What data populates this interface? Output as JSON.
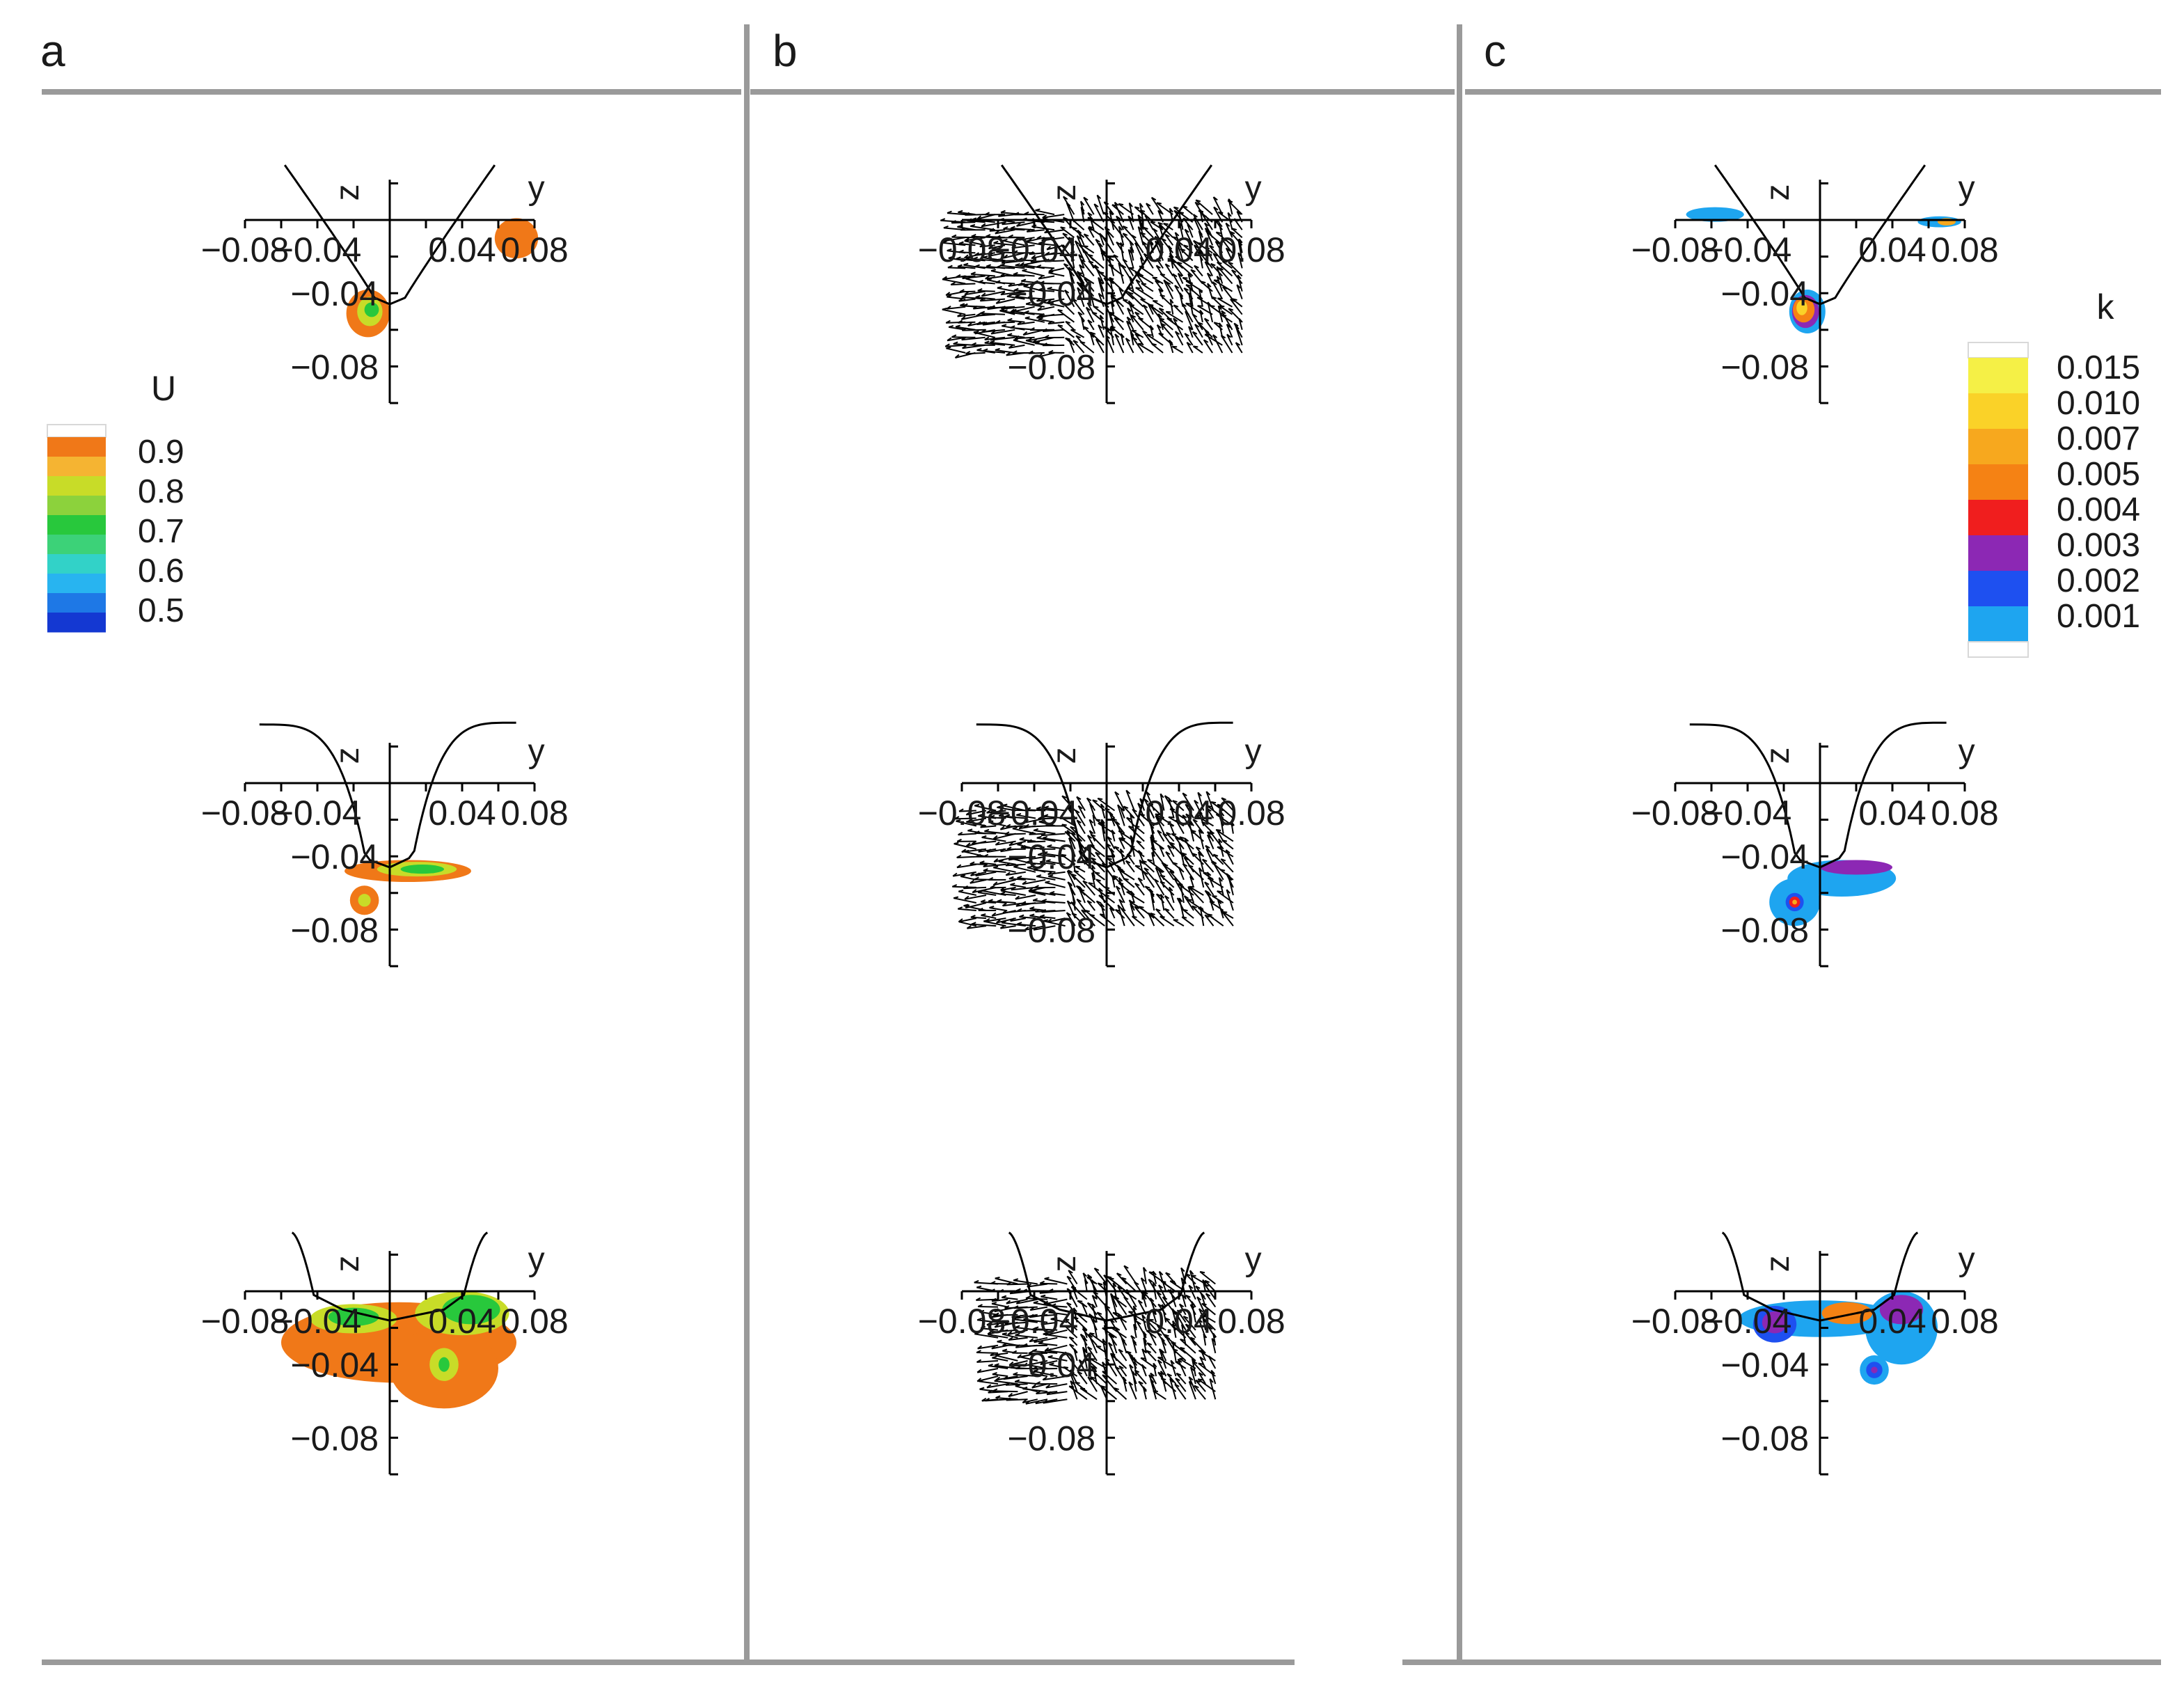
{
  "figure": {
    "panel_labels": [
      "a",
      "b",
      "c"
    ],
    "colors": {
      "separator": "#9a9a9a",
      "axis": "#000000",
      "hull": "#000000",
      "vector": "#000000"
    }
  },
  "chart_data": [
    {
      "id": "a1",
      "panel": "a",
      "row": 1,
      "type": "contour",
      "variable": "U",
      "xlabel": "y",
      "ylabel": "z",
      "xticks": [
        "−0.08",
        "−0.04",
        "0.04",
        "0.08"
      ],
      "xtick_values": [
        -0.08,
        -0.04,
        0.04,
        0.08
      ],
      "yticks": [
        "−0.04",
        "−0.08"
      ],
      "ytick_values": [
        -0.04,
        -0.08
      ],
      "xlim": [
        -0.08,
        0.08
      ],
      "ylim": [
        -0.1,
        0.02
      ],
      "hull": "v",
      "colorbar": {
        "title": "U",
        "labels": [
          "0.9",
          "0.8",
          "0.7",
          "0.6",
          "0.5"
        ],
        "label_values": [
          0.9,
          0.8,
          0.7,
          0.6,
          0.5
        ],
        "levels": [
          0.95,
          0.9,
          0.85,
          0.8,
          0.75,
          0.7,
          0.65,
          0.6,
          0.55,
          0.5
        ],
        "colors": [
          "#f07818",
          "#f5b432",
          "#c8dc28",
          "#8cd23c",
          "#28c83c",
          "#3cd278",
          "#32d2c8",
          "#28b4f0",
          "#1e78e6",
          "#1438d2"
        ]
      },
      "regions": [
        {
          "cx": 0.07,
          "cy": -0.01,
          "rx": 0.012,
          "ry": 0.011,
          "level": 0.9,
          "color": "#f07818"
        },
        {
          "cx": -0.012,
          "cy": -0.051,
          "rx": 0.012,
          "ry": 0.013,
          "level": 0.9,
          "color": "#f07818"
        },
        {
          "cx": -0.011,
          "cy": -0.05,
          "rx": 0.007,
          "ry": 0.008,
          "level": 0.85,
          "color": "#c8dc28"
        },
        {
          "cx": -0.01,
          "cy": -0.049,
          "rx": 0.004,
          "ry": 0.004,
          "level": 0.75,
          "color": "#28c83c"
        }
      ]
    },
    {
      "id": "a2",
      "panel": "a",
      "row": 2,
      "type": "contour",
      "variable": "U",
      "xlabel": "y",
      "ylabel": "z",
      "xticks": [
        "−0.08",
        "−0.04",
        "0.04",
        "0.08"
      ],
      "xtick_values": [
        -0.08,
        -0.04,
        0.04,
        0.08
      ],
      "yticks": [
        "−0.04",
        "−0.08"
      ],
      "ytick_values": [
        -0.04,
        -0.08
      ],
      "xlim": [
        -0.08,
        0.08
      ],
      "ylim": [
        -0.1,
        0.02
      ],
      "hull": "u",
      "regions": [
        {
          "cx": 0.01,
          "cy": -0.048,
          "rx": 0.035,
          "ry": 0.006,
          "level": 0.9,
          "color": "#f07818"
        },
        {
          "cx": 0.015,
          "cy": -0.047,
          "rx": 0.022,
          "ry": 0.004,
          "level": 0.85,
          "color": "#c8dc28"
        },
        {
          "cx": 0.018,
          "cy": -0.047,
          "rx": 0.012,
          "ry": 0.0025,
          "level": 0.75,
          "color": "#28c83c"
        },
        {
          "cx": -0.014,
          "cy": -0.064,
          "rx": 0.008,
          "ry": 0.008,
          "level": 0.9,
          "color": "#f07818"
        },
        {
          "cx": -0.014,
          "cy": -0.064,
          "rx": 0.0035,
          "ry": 0.0035,
          "level": 0.85,
          "color": "#c8dc28"
        }
      ]
    },
    {
      "id": "a3",
      "panel": "a",
      "row": 3,
      "type": "contour",
      "variable": "U",
      "xlabel": "y",
      "ylabel": "z",
      "xticks": [
        "−0.08",
        "−0.04",
        "0.04",
        "0.08"
      ],
      "xtick_values": [
        -0.08,
        -0.04,
        0.04,
        0.08
      ],
      "yticks": [
        "−0.04",
        "−0.08"
      ],
      "ytick_values": [
        -0.04,
        -0.08
      ],
      "xlim": [
        -0.08,
        0.08
      ],
      "ylim": [
        -0.1,
        0.02
      ],
      "hull": "flat",
      "regions": [
        {
          "cx": 0.005,
          "cy": -0.028,
          "rx": 0.065,
          "ry": 0.022,
          "level": 0.9,
          "color": "#f07818"
        },
        {
          "cx": 0.03,
          "cy": -0.042,
          "rx": 0.03,
          "ry": 0.022,
          "level": 0.9,
          "color": "#f07818"
        },
        {
          "cx": -0.02,
          "cy": -0.015,
          "rx": 0.024,
          "ry": 0.008,
          "level": 0.85,
          "color": "#c8dc28"
        },
        {
          "cx": -0.02,
          "cy": -0.014,
          "rx": 0.014,
          "ry": 0.005,
          "level": 0.75,
          "color": "#28c83c"
        },
        {
          "cx": 0.04,
          "cy": -0.012,
          "rx": 0.026,
          "ry": 0.012,
          "level": 0.85,
          "color": "#c8dc28"
        },
        {
          "cx": 0.045,
          "cy": -0.01,
          "rx": 0.016,
          "ry": 0.008,
          "level": 0.75,
          "color": "#28c83c"
        },
        {
          "cx": 0.03,
          "cy": -0.04,
          "rx": 0.008,
          "ry": 0.009,
          "level": 0.85,
          "color": "#c8dc28"
        },
        {
          "cx": 0.03,
          "cy": -0.04,
          "rx": 0.003,
          "ry": 0.004,
          "level": 0.75,
          "color": "#28c83c"
        }
      ]
    },
    {
      "id": "b1",
      "panel": "b",
      "row": 1,
      "type": "vector",
      "variable": "velocity",
      "xlabel": "y",
      "ylabel": "z",
      "xticks": [
        "−0.08",
        "−0.04",
        "0.04",
        "0.08"
      ],
      "xtick_values": [
        -0.08,
        -0.04,
        0.04,
        0.08
      ],
      "yticks": [
        "−0.04",
        "−0.08"
      ],
      "ytick_values": [
        -0.04,
        -0.08
      ],
      "xlim": [
        -0.08,
        0.08
      ],
      "ylim": [
        -0.1,
        0.02
      ],
      "hull": "v",
      "vector_region": {
        "y": [
          -0.078,
          0.075
        ],
        "z": [
          -0.075,
          0.003
        ]
      }
    },
    {
      "id": "b2",
      "panel": "b",
      "row": 2,
      "type": "vector",
      "variable": "velocity",
      "xlabel": "y",
      "ylabel": "z",
      "xticks": [
        "−0.08",
        "−0.04",
        "0.04",
        "0.08"
      ],
      "xtick_values": [
        -0.08,
        -0.04,
        0.04,
        0.08
      ],
      "yticks": [
        "−0.04",
        "−0.08"
      ],
      "ytick_values": [
        -0.04,
        -0.08
      ],
      "xlim": [
        -0.08,
        0.08
      ],
      "ylim": [
        -0.1,
        0.02
      ],
      "hull": "u",
      "vector_region": {
        "y": [
          -0.072,
          0.07
        ],
        "z": [
          -0.082,
          -0.015
        ]
      }
    },
    {
      "id": "b3",
      "panel": "b",
      "row": 3,
      "type": "vector",
      "variable": "velocity",
      "xlabel": "y",
      "ylabel": "z",
      "xticks": [
        "−0.08",
        "−0.04",
        "0.04",
        "0.08"
      ],
      "xtick_values": [
        -0.08,
        -0.04,
        0.04,
        0.08
      ],
      "yticks": [
        "−0.04",
        "−0.08"
      ],
      "ytick_values": [
        -0.04,
        -0.08
      ],
      "xlim": [
        -0.08,
        0.08
      ],
      "ylim": [
        -0.1,
        0.02
      ],
      "hull": "flat",
      "vector_region": {
        "y": [
          -0.06,
          0.065
        ],
        "z": [
          -0.063,
          0.004
        ]
      }
    },
    {
      "id": "c1",
      "panel": "c",
      "row": 1,
      "type": "contour",
      "variable": "k",
      "xlabel": "y",
      "ylabel": "z",
      "xticks": [
        "−0.08",
        "−0.04",
        "0.04",
        "0.08"
      ],
      "xtick_values": [
        -0.08,
        -0.04,
        0.04,
        0.08
      ],
      "yticks": [
        "−0.04",
        "−0.08"
      ],
      "ytick_values": [
        -0.04,
        -0.08
      ],
      "xlim": [
        -0.08,
        0.08
      ],
      "ylim": [
        -0.1,
        0.02
      ],
      "hull": "v",
      "colorbar": {
        "title": "k",
        "labels": [
          "0.015",
          "0.010",
          "0.007",
          "0.005",
          "0.004",
          "0.003",
          "0.002",
          "0.001"
        ],
        "label_values": [
          0.015,
          0.01,
          0.007,
          0.005,
          0.004,
          0.003,
          0.002,
          0.001
        ],
        "colors": [
          "#f5f046",
          "#fad228",
          "#f7a81e",
          "#f58214",
          "#f01e1e",
          "#8c28b4",
          "#1e50f0",
          "#1ea5f0"
        ]
      },
      "regions": [
        {
          "cx": -0.058,
          "cy": 0.003,
          "rx": 0.016,
          "ry": 0.004,
          "level": 0.001,
          "color": "#1ea5f0"
        },
        {
          "cx": 0.066,
          "cy": -0.001,
          "rx": 0.012,
          "ry": 0.003,
          "level": 0.001,
          "color": "#1ea5f0"
        },
        {
          "cx": 0.07,
          "cy": -0.001,
          "rx": 0.005,
          "ry": 0.002,
          "level": 0.007,
          "color": "#f7a81e"
        },
        {
          "cx": -0.007,
          "cy": -0.05,
          "rx": 0.01,
          "ry": 0.012,
          "level": 0.001,
          "color": "#1ea5f0"
        },
        {
          "cx": -0.008,
          "cy": -0.05,
          "rx": 0.0075,
          "ry": 0.009,
          "level": 0.003,
          "color": "#8c28b4"
        },
        {
          "cx": -0.009,
          "cy": -0.049,
          "rx": 0.006,
          "ry": 0.007,
          "level": 0.005,
          "color": "#f58214"
        },
        {
          "cx": -0.01,
          "cy": -0.048,
          "rx": 0.003,
          "ry": 0.004,
          "level": 0.01,
          "color": "#fad228"
        }
      ]
    },
    {
      "id": "c2",
      "panel": "c",
      "row": 2,
      "type": "contour",
      "variable": "k",
      "xlabel": "y",
      "ylabel": "z",
      "xticks": [
        "−0.08",
        "−0.04",
        "0.04",
        "0.08"
      ],
      "xtick_values": [
        -0.08,
        -0.04,
        0.04,
        0.08
      ],
      "yticks": [
        "−0.04",
        "−0.08"
      ],
      "ytick_values": [
        -0.04,
        -0.08
      ],
      "xlim": [
        -0.08,
        0.08
      ],
      "ylim": [
        -0.1,
        0.02
      ],
      "hull": "u",
      "regions": [
        {
          "cx": 0.012,
          "cy": -0.052,
          "rx": 0.03,
          "ry": 0.01,
          "level": 0.001,
          "color": "#1ea5f0"
        },
        {
          "cx": -0.014,
          "cy": -0.065,
          "rx": 0.014,
          "ry": 0.013,
          "level": 0.001,
          "color": "#1ea5f0"
        },
        {
          "cx": -0.014,
          "cy": -0.065,
          "rx": 0.005,
          "ry": 0.005,
          "level": 0.002,
          "color": "#1e50f0"
        },
        {
          "cx": -0.014,
          "cy": -0.065,
          "rx": 0.003,
          "ry": 0.003,
          "level": 0.004,
          "color": "#f01e1e"
        },
        {
          "cx": -0.014,
          "cy": -0.065,
          "rx": 0.0013,
          "ry": 0.0013,
          "level": 0.007,
          "color": "#f7a81e"
        },
        {
          "cx": 0.02,
          "cy": -0.046,
          "rx": 0.02,
          "ry": 0.004,
          "level": 0.003,
          "color": "#8c28b4"
        }
      ]
    },
    {
      "id": "c3",
      "panel": "c",
      "row": 3,
      "type": "contour",
      "variable": "k",
      "xlabel": "y",
      "ylabel": "z",
      "xticks": [
        "−0.08",
        "−0.04",
        "0.04",
        "0.08"
      ],
      "xtick_values": [
        -0.08,
        -0.04,
        0.04,
        0.08
      ],
      "yticks": [
        "−0.04",
        "−0.08"
      ],
      "ytick_values": [
        -0.04,
        -0.08
      ],
      "xlim": [
        -0.08,
        0.08
      ],
      "ylim": [
        -0.1,
        0.02
      ],
      "hull": "flat",
      "regions": [
        {
          "cx": 0.0,
          "cy": -0.015,
          "rx": 0.045,
          "ry": 0.01,
          "level": 0.001,
          "color": "#1ea5f0"
        },
        {
          "cx": 0.045,
          "cy": -0.02,
          "rx": 0.02,
          "ry": 0.02,
          "level": 0.001,
          "color": "#1ea5f0"
        },
        {
          "cx": -0.025,
          "cy": -0.018,
          "rx": 0.012,
          "ry": 0.01,
          "level": 0.002,
          "color": "#1e50f0"
        },
        {
          "cx": -0.025,
          "cy": -0.017,
          "rx": 0.007,
          "ry": 0.006,
          "level": 0.003,
          "color": "#8c28b4"
        },
        {
          "cx": 0.015,
          "cy": -0.012,
          "rx": 0.014,
          "ry": 0.006,
          "level": 0.005,
          "color": "#f58214"
        },
        {
          "cx": 0.045,
          "cy": -0.01,
          "rx": 0.012,
          "ry": 0.008,
          "level": 0.003,
          "color": "#8c28b4"
        },
        {
          "cx": 0.03,
          "cy": -0.043,
          "rx": 0.008,
          "ry": 0.008,
          "level": 0.001,
          "color": "#1ea5f0"
        },
        {
          "cx": 0.03,
          "cy": -0.043,
          "rx": 0.0045,
          "ry": 0.0045,
          "level": 0.002,
          "color": "#1e50f0"
        },
        {
          "cx": 0.03,
          "cy": -0.043,
          "rx": 0.0018,
          "ry": 0.0018,
          "level": 0.003,
          "color": "#8c28b4"
        }
      ]
    }
  ]
}
